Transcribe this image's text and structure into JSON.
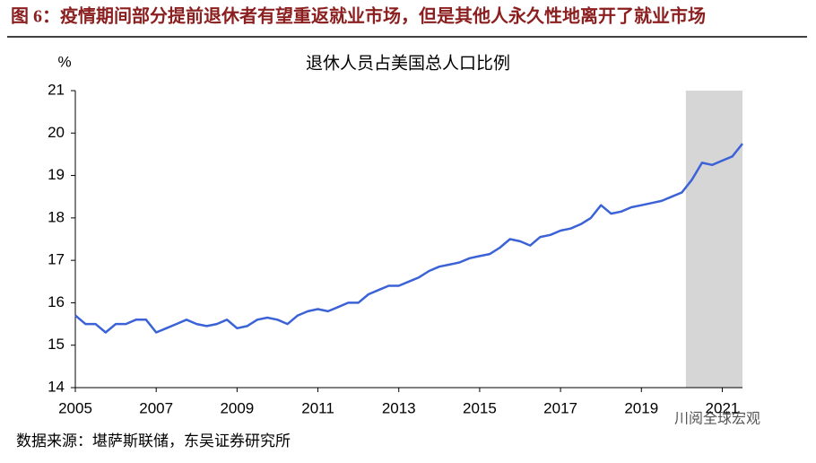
{
  "chart_data": {
    "type": "line",
    "figure_title": "图 6：疫情期间部分提前退休者有望重返就业市场，但是其他人永久性地离开了就业市场",
    "title": "退休人员占美国总人口比例",
    "y_unit": "%",
    "source": "数据来源：堪萨斯联储，东吴证券研究所",
    "watermark": "川阅全球宏观",
    "x": [
      2005.0,
      2005.25,
      2005.5,
      2005.75,
      2006.0,
      2006.25,
      2006.5,
      2006.75,
      2007.0,
      2007.25,
      2007.5,
      2007.75,
      2008.0,
      2008.25,
      2008.5,
      2008.75,
      2009.0,
      2009.25,
      2009.5,
      2009.75,
      2010.0,
      2010.25,
      2010.5,
      2010.75,
      2011.0,
      2011.25,
      2011.5,
      2011.75,
      2012.0,
      2012.25,
      2012.5,
      2012.75,
      2013.0,
      2013.25,
      2013.5,
      2013.75,
      2014.0,
      2014.25,
      2014.5,
      2014.75,
      2015.0,
      2015.25,
      2015.5,
      2015.75,
      2016.0,
      2016.25,
      2016.5,
      2016.75,
      2017.0,
      2017.25,
      2017.5,
      2017.75,
      2018.0,
      2018.25,
      2018.5,
      2018.75,
      2019.0,
      2019.25,
      2019.5,
      2019.75,
      2020.0,
      2020.25,
      2020.5,
      2020.75,
      2021.0,
      2021.25,
      2021.5
    ],
    "series": [
      {
        "color": "#3b62d6",
        "values": [
          15.7,
          15.5,
          15.5,
          15.3,
          15.5,
          15.5,
          15.6,
          15.6,
          15.3,
          15.4,
          15.5,
          15.6,
          15.5,
          15.45,
          15.5,
          15.6,
          15.4,
          15.45,
          15.6,
          15.65,
          15.6,
          15.5,
          15.7,
          15.8,
          15.85,
          15.8,
          15.9,
          16.0,
          16.0,
          16.2,
          16.3,
          16.4,
          16.4,
          16.5,
          16.6,
          16.75,
          16.85,
          16.9,
          16.95,
          17.05,
          17.1,
          17.15,
          17.3,
          17.5,
          17.45,
          17.35,
          17.55,
          17.6,
          17.7,
          17.75,
          17.85,
          18.0,
          18.3,
          18.1,
          18.15,
          18.25,
          18.3,
          18.35,
          18.4,
          18.5,
          18.6,
          18.9,
          19.3,
          19.25,
          19.35,
          19.45,
          19.75
        ]
      }
    ],
    "highlight_span": [
      2020.1,
      2021.5
    ],
    "highlight_color": "#d6d6d6",
    "xlim": [
      2005,
      2021.5
    ],
    "xticks": [
      2005,
      2007,
      2009,
      2011,
      2013,
      2015,
      2017,
      2019,
      2021
    ],
    "ylim": [
      14,
      21
    ],
    "yticks": [
      14,
      15,
      16,
      17,
      18,
      19,
      20,
      21
    ]
  }
}
